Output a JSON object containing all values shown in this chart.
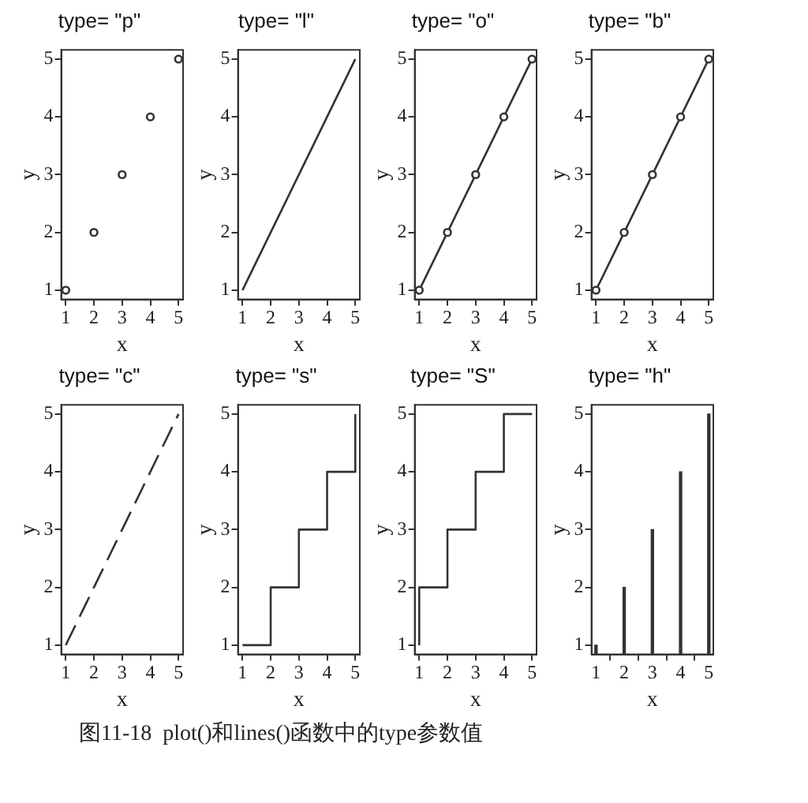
{
  "chart_data": [
    {
      "type": "scatter",
      "title": "type= \"p\"",
      "xlabel": "x",
      "ylabel": "y",
      "x": [
        1,
        2,
        3,
        4,
        5
      ],
      "values": [
        1,
        2,
        3,
        4,
        5
      ],
      "color": "#333333",
      "marker": "circle",
      "xlim": [
        0.84,
        5.16
      ],
      "ylim": [
        0.84,
        5.16
      ],
      "xticks": [
        1,
        2,
        3,
        4,
        5
      ],
      "yticks": [
        1,
        2,
        3,
        4,
        5
      ],
      "grid": false,
      "legend": false
    },
    {
      "type": "line",
      "title": "type= \"l\"",
      "xlabel": "x",
      "ylabel": "y",
      "x": [
        1,
        2,
        3,
        4,
        5
      ],
      "values": [
        1,
        2,
        3,
        4,
        5
      ],
      "color": "#333333",
      "marker": "none",
      "line_style": "solid",
      "xlim": [
        0.84,
        5.16
      ],
      "ylim": [
        0.84,
        5.16
      ],
      "xticks": [
        1,
        2,
        3,
        4,
        5
      ],
      "yticks": [
        1,
        2,
        3,
        4,
        5
      ],
      "grid": false,
      "legend": false
    },
    {
      "type": "line",
      "title": "type= \"o\"",
      "xlabel": "x",
      "ylabel": "y",
      "x": [
        1,
        2,
        3,
        4,
        5
      ],
      "values": [
        1,
        2,
        3,
        4,
        5
      ],
      "color": "#333333",
      "marker": "circle",
      "line_style": "solid",
      "xlim": [
        0.84,
        5.16
      ],
      "ylim": [
        0.84,
        5.16
      ],
      "xticks": [
        1,
        2,
        3,
        4,
        5
      ],
      "yticks": [
        1,
        2,
        3,
        4,
        5
      ],
      "grid": false,
      "legend": false
    },
    {
      "type": "line",
      "title": "type= \"b\"",
      "xlabel": "x",
      "ylabel": "y",
      "x": [
        1,
        2,
        3,
        4,
        5
      ],
      "values": [
        1,
        2,
        3,
        4,
        5
      ],
      "color": "#333333",
      "marker": "circle",
      "line_style": "solid",
      "xlim": [
        0.84,
        5.16
      ],
      "ylim": [
        0.84,
        5.16
      ],
      "xticks": [
        1,
        2,
        3,
        4,
        5
      ],
      "yticks": [
        1,
        2,
        3,
        4,
        5
      ],
      "grid": false,
      "legend": false
    },
    {
      "type": "line",
      "title": "type= \"c\"",
      "xlabel": "x",
      "ylabel": "y",
      "x": [
        1,
        2,
        3,
        4,
        5
      ],
      "values": [
        1,
        2,
        3,
        4,
        5
      ],
      "color": "#333333",
      "marker": "none",
      "line_style": "dashed",
      "xlim": [
        0.84,
        5.16
      ],
      "ylim": [
        0.84,
        5.16
      ],
      "xticks": [
        1,
        2,
        3,
        4,
        5
      ],
      "yticks": [
        1,
        2,
        3,
        4,
        5
      ],
      "grid": false,
      "legend": false
    },
    {
      "type": "step",
      "title": "type= \"s\"",
      "xlabel": "x",
      "ylabel": "y",
      "x": [
        1,
        2,
        3,
        4,
        5
      ],
      "values": [
        1,
        2,
        3,
        4,
        5
      ],
      "color": "#333333",
      "marker": "none",
      "line_style": "solid",
      "xlim": [
        0.84,
        5.16
      ],
      "ylim": [
        0.84,
        5.16
      ],
      "xticks": [
        1,
        2,
        3,
        4,
        5
      ],
      "yticks": [
        1,
        2,
        3,
        4,
        5
      ],
      "grid": false,
      "legend": false
    },
    {
      "type": "line",
      "title": "type= \"S\"",
      "xlabel": "x",
      "ylabel": "y",
      "x": [
        1,
        1,
        2,
        2,
        3,
        3,
        4,
        4,
        5,
        5
      ],
      "values": [
        1,
        2,
        2,
        3,
        3,
        4,
        4,
        5,
        5,
        5
      ],
      "color": "#333333",
      "marker": "none",
      "line_style": "solid",
      "xlim": [
        0.84,
        5.16
      ],
      "ylim": [
        0.84,
        5.16
      ],
      "xticks": [
        1,
        2,
        3,
        4,
        5
      ],
      "yticks": [
        1,
        2,
        3,
        4,
        5
      ],
      "grid": false,
      "legend": false
    },
    {
      "type": "bar",
      "title": "type= \"h\"",
      "xlabel": "x",
      "ylabel": "y",
      "x": [
        1,
        2,
        3,
        4,
        5
      ],
      "values": [
        1,
        2,
        3,
        4,
        5
      ],
      "color": "#333333",
      "xlim": [
        0.84,
        5.16
      ],
      "ylim": [
        0.84,
        5.16
      ],
      "xticks": [
        1,
        2,
        3,
        4,
        5
      ],
      "yticks": [
        1,
        2,
        3,
        4,
        5
      ],
      "grid": false,
      "legend": false,
      "annotations": [
        "图11-18  plot()和lines()函数中的type参数值"
      ]
    }
  ]
}
